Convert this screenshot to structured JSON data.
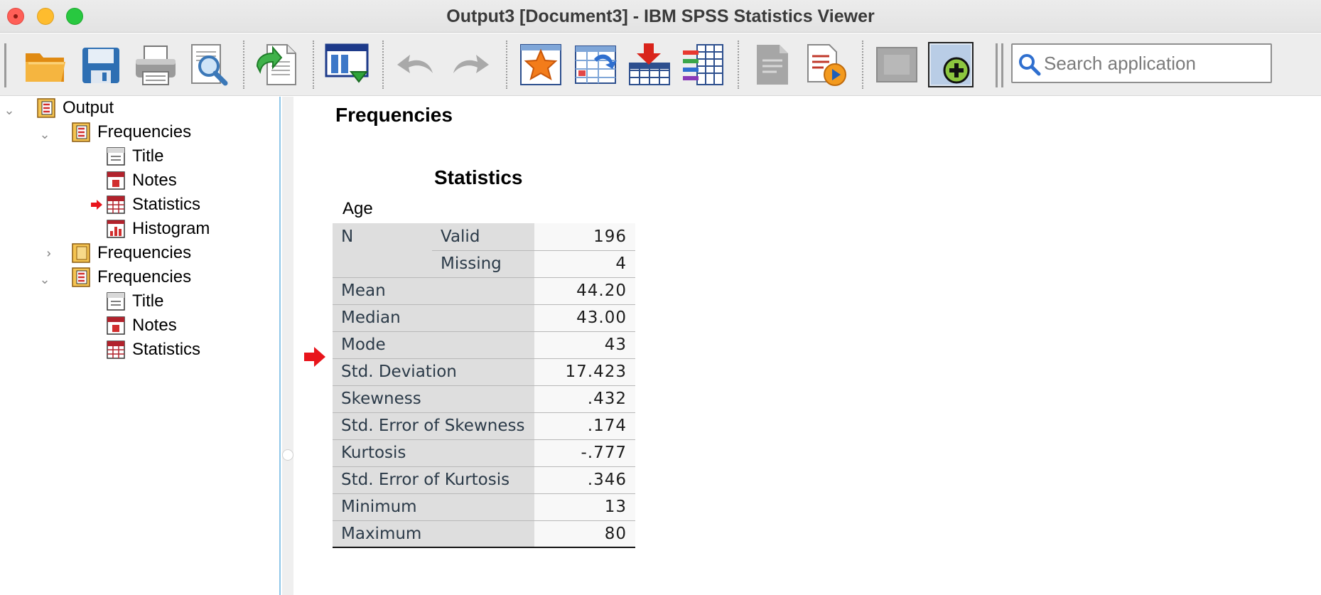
{
  "window": {
    "title": "Output3 [Document3] - IBM SPSS Statistics Viewer"
  },
  "toolbar": {
    "buttons": [
      "open-icon",
      "save-icon",
      "print-icon",
      "print-preview-icon",
      "export-icon",
      "goto-data-icon",
      "undo-icon",
      "redo-icon",
      "goto-case-icon",
      "goto-variable-icon",
      "insert-cases-icon",
      "variables-icon",
      "designate-window-icon",
      "run-script-icon",
      "disabled-icon",
      "add-new-icon"
    ],
    "search_placeholder": "Search application"
  },
  "outline": {
    "root": "Output",
    "nodes": [
      {
        "label": "Frequencies",
        "expanded": true,
        "children": [
          "Title",
          "Notes",
          "Statistics",
          "Histogram"
        ]
      },
      {
        "label": "Frequencies",
        "expanded": false,
        "children": []
      },
      {
        "label": "Frequencies",
        "expanded": true,
        "children": [
          "Title",
          "Notes",
          "Statistics"
        ]
      }
    ],
    "selected": "Statistics"
  },
  "content": {
    "section_title": "Frequencies",
    "table_title": "Statistics",
    "variable": "Age",
    "rows": [
      {
        "label": "N",
        "sublabel": "Valid",
        "value": "196"
      },
      {
        "label": "",
        "sublabel": "Missing",
        "value": "4"
      },
      {
        "label": "Mean",
        "value": "44.20"
      },
      {
        "label": "Median",
        "value": "43.00"
      },
      {
        "label": "Mode",
        "value": "43"
      },
      {
        "label": "Std. Deviation",
        "value": "17.423"
      },
      {
        "label": "Skewness",
        "value": ".432"
      },
      {
        "label": "Std. Error of Skewness",
        "value": ".174"
      },
      {
        "label": "Kurtosis",
        "value": "-.777"
      },
      {
        "label": "Std. Error of Kurtosis",
        "value": ".346"
      },
      {
        "label": "Minimum",
        "value": "13"
      },
      {
        "label": "Maximum",
        "value": "80"
      }
    ]
  },
  "colors": {
    "selection_arrow": "#e8141b",
    "pane_border": "#8fc6e9"
  }
}
